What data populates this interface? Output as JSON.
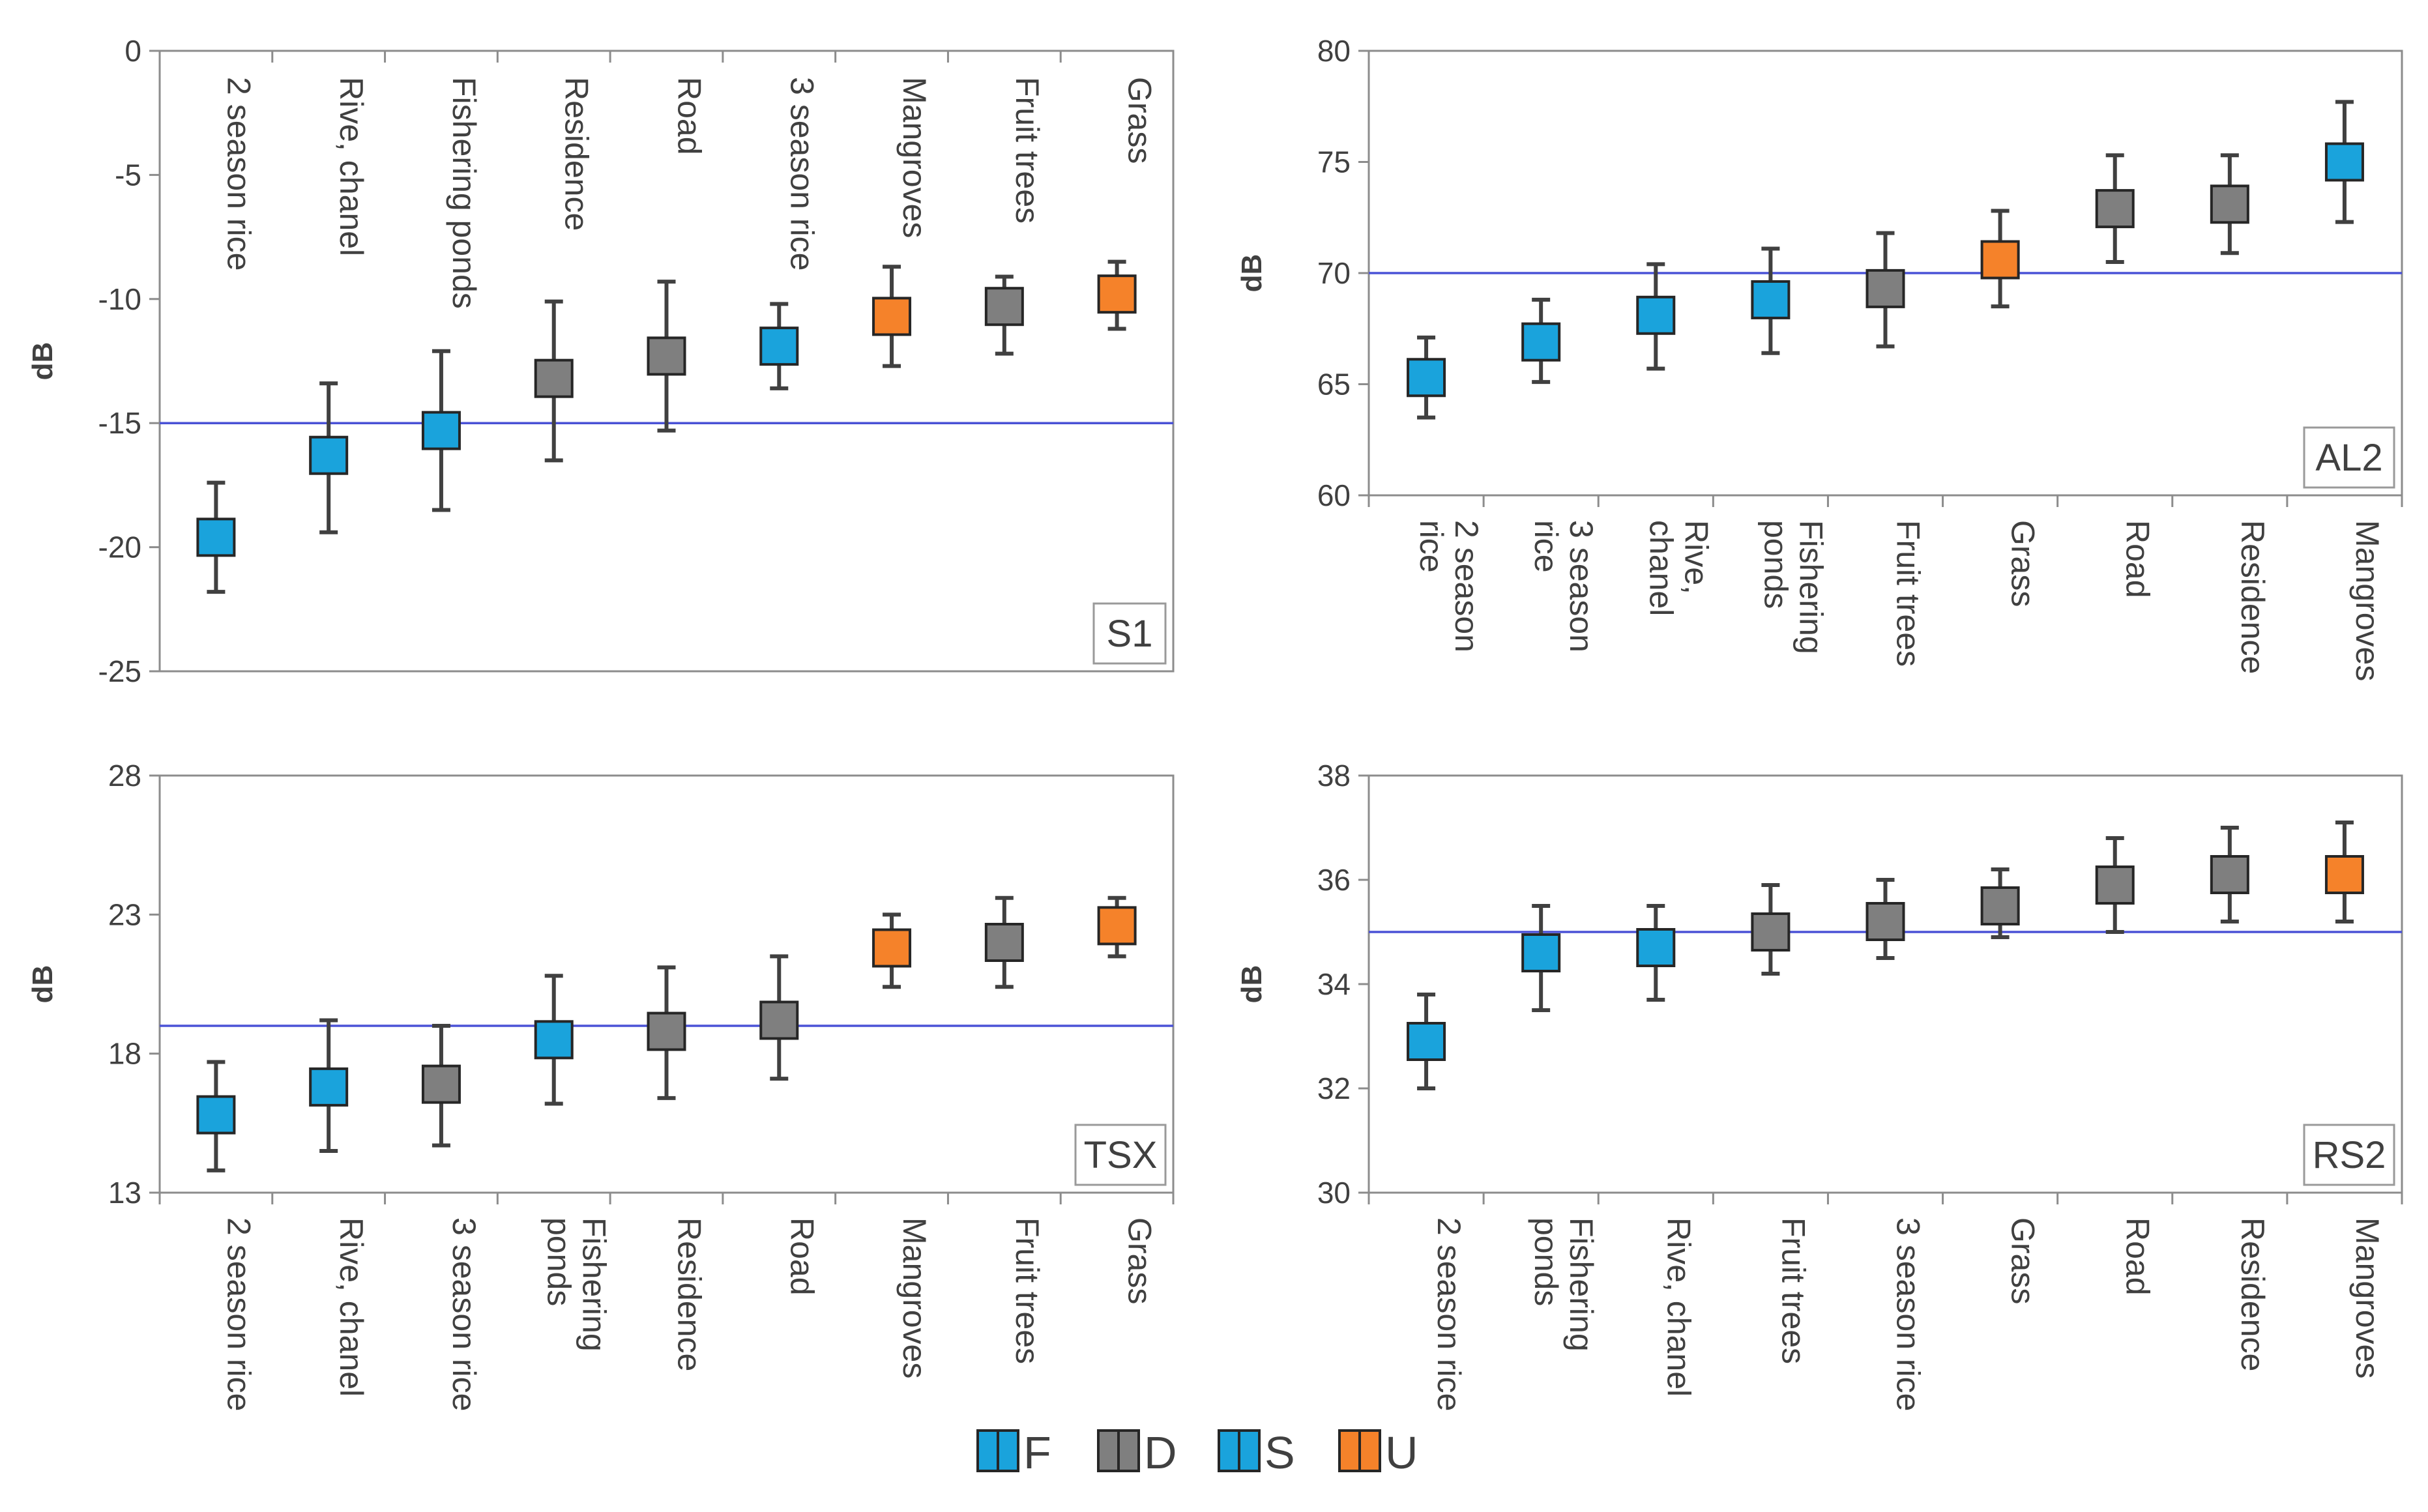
{
  "legend": {
    "items": [
      {
        "label": "F",
        "fill": "#1aa3dc"
      },
      {
        "label": "D",
        "fill": "#7f7f7f"
      },
      {
        "label": "S",
        "fill": "#1aa3dc"
      },
      {
        "label": "U",
        "fill": "#f5822a"
      }
    ]
  },
  "colors": {
    "F": "#1aa3dc",
    "D": "#7f7f7f",
    "S": "#1aa3dc",
    "U": "#f5822a",
    "ref_line": "#4a52d6",
    "axis": "#8c8c8c"
  },
  "chart_data": [
    {
      "id": "s1",
      "type": "scatter",
      "title": "S1",
      "ylabel": "dB",
      "ylim": [
        -25,
        0
      ],
      "yticks": [
        0,
        -5,
        -10,
        -15,
        -20,
        -25
      ],
      "ref_line": -15,
      "category_labels_position": "inside-top",
      "categories": [
        {
          "label": "2 season rice",
          "mean": -19.6,
          "low": -21.8,
          "high": -17.4,
          "class": "S"
        },
        {
          "label": "Rive, chanel",
          "mean": -16.3,
          "low": -19.4,
          "high": -13.4,
          "class": "F"
        },
        {
          "label": "Fishering ponds",
          "mean": -15.3,
          "low": -18.5,
          "high": -12.1,
          "class": "F"
        },
        {
          "label": "Residence",
          "mean": -13.2,
          "low": -16.5,
          "high": -10.1,
          "class": "D"
        },
        {
          "label": "Road",
          "mean": -12.3,
          "low": -15.3,
          "high": -9.3,
          "class": "D"
        },
        {
          "label": "3 season rice",
          "mean": -11.9,
          "low": -13.6,
          "high": -10.2,
          "class": "S"
        },
        {
          "label": "Mangroves",
          "mean": -10.7,
          "low": -12.7,
          "high": -8.7,
          "class": "U"
        },
        {
          "label": "Fruit trees",
          "mean": -10.3,
          "low": -12.2,
          "high": -9.1,
          "class": "D"
        },
        {
          "label": "Grass",
          "mean": -9.8,
          "low": -11.2,
          "high": -8.5,
          "class": "U"
        }
      ]
    },
    {
      "id": "al2",
      "type": "scatter",
      "title": "AL2",
      "ylabel": "dB",
      "ylim": [
        60,
        80
      ],
      "yticks": [
        80,
        75,
        70,
        65,
        60
      ],
      "ref_line": 70,
      "category_labels_position": "below",
      "categories": [
        {
          "label": "2 season rice",
          "lines": [
            "2 season",
            "rice"
          ],
          "mean": 65.3,
          "low": 63.5,
          "high": 67.1,
          "class": "S"
        },
        {
          "label": "3 season rice",
          "lines": [
            "3 season",
            "rice"
          ],
          "mean": 66.9,
          "low": 65.1,
          "high": 68.8,
          "class": "S"
        },
        {
          "label": "Rive, chanel",
          "lines": [
            "Rive,",
            "chanel"
          ],
          "mean": 68.1,
          "low": 65.7,
          "high": 70.4,
          "class": "F"
        },
        {
          "label": "Fishering ponds",
          "lines": [
            "Fishering",
            "ponds"
          ],
          "mean": 68.8,
          "low": 66.4,
          "high": 71.1,
          "class": "F"
        },
        {
          "label": "Fruit trees",
          "lines": [
            "Fruit trees"
          ],
          "mean": 69.3,
          "low": 66.7,
          "high": 71.8,
          "class": "D"
        },
        {
          "label": "Grass",
          "lines": [
            "Grass"
          ],
          "mean": 70.6,
          "low": 68.5,
          "high": 72.8,
          "class": "U"
        },
        {
          "label": "Road",
          "lines": [
            "Road"
          ],
          "mean": 72.9,
          "low": 70.5,
          "high": 75.3,
          "class": "D"
        },
        {
          "label": "Residence",
          "lines": [
            "Residence"
          ],
          "mean": 73.1,
          "low": 70.9,
          "high": 75.3,
          "class": "D"
        },
        {
          "label": "Mangroves",
          "lines": [
            "Mangroves"
          ],
          "mean": 75.0,
          "low": 72.3,
          "high": 77.7,
          "class": "F"
        }
      ]
    },
    {
      "id": "tsx",
      "type": "scatter",
      "title": "TSX",
      "ylabel": "dB",
      "ylim": [
        13,
        28
      ],
      "yticks": [
        28,
        23,
        18,
        13
      ],
      "ref_line": 19,
      "category_labels_position": "below",
      "categories": [
        {
          "label": "2 season rice",
          "lines": [
            "2 season rice"
          ],
          "mean": 15.8,
          "low": 13.8,
          "high": 17.7,
          "class": "S"
        },
        {
          "label": "Rive, chanel",
          "lines": [
            "Rive, chanel"
          ],
          "mean": 16.8,
          "low": 14.5,
          "high": 19.2,
          "class": "F"
        },
        {
          "label": "3 season rice",
          "lines": [
            "3 season rice"
          ],
          "mean": 16.9,
          "low": 14.7,
          "high": 19.0,
          "class": "D"
        },
        {
          "label": "Fishering ponds",
          "lines": [
            "Fishering",
            "ponds"
          ],
          "mean": 18.5,
          "low": 16.2,
          "high": 20.8,
          "class": "F"
        },
        {
          "label": "Residence",
          "lines": [
            "Residence"
          ],
          "mean": 18.8,
          "low": 16.4,
          "high": 21.1,
          "class": "D"
        },
        {
          "label": "Road",
          "lines": [
            "Road"
          ],
          "mean": 19.2,
          "low": 17.1,
          "high": 21.5,
          "class": "D"
        },
        {
          "label": "Mangroves",
          "lines": [
            "Mangroves"
          ],
          "mean": 21.8,
          "low": 20.4,
          "high": 23.0,
          "class": "U"
        },
        {
          "label": "Fruit trees",
          "lines": [
            "Fruit trees"
          ],
          "mean": 22.0,
          "low": 20.4,
          "high": 23.6,
          "class": "D"
        },
        {
          "label": "Grass",
          "lines": [
            "Grass"
          ],
          "mean": 22.6,
          "low": 21.5,
          "high": 23.6,
          "class": "U"
        }
      ]
    },
    {
      "id": "rs2",
      "type": "scatter",
      "title": "RS2",
      "ylabel": "dB",
      "ylim": [
        30,
        38
      ],
      "yticks": [
        38,
        36,
        34,
        32,
        30
      ],
      "ref_line": 35.0,
      "category_labels_position": "below",
      "categories": [
        {
          "label": "2 season rice",
          "lines": [
            "2 season rice"
          ],
          "mean": 32.9,
          "low": 32.0,
          "high": 33.8,
          "class": "S"
        },
        {
          "label": "Fishering ponds",
          "lines": [
            "Fishering",
            "ponds"
          ],
          "mean": 34.6,
          "low": 33.5,
          "high": 35.5,
          "class": "F"
        },
        {
          "label": "Rive, chanel",
          "lines": [
            "Rive, chanel"
          ],
          "mean": 34.7,
          "low": 33.7,
          "high": 35.5,
          "class": "F"
        },
        {
          "label": "Fruit trees",
          "lines": [
            "Fruit trees"
          ],
          "mean": 35.0,
          "low": 34.2,
          "high": 35.9,
          "class": "D"
        },
        {
          "label": "3 season rice",
          "lines": [
            "3 season rice"
          ],
          "mean": 35.2,
          "low": 34.5,
          "high": 36.0,
          "class": "D"
        },
        {
          "label": "Grass",
          "lines": [
            "Grass"
          ],
          "mean": 35.5,
          "low": 34.9,
          "high": 36.2,
          "class": "D"
        },
        {
          "label": "Road",
          "lines": [
            "Road"
          ],
          "mean": 35.9,
          "low": 35.0,
          "high": 36.8,
          "class": "D"
        },
        {
          "label": "Residence",
          "lines": [
            "Residence"
          ],
          "mean": 36.1,
          "low": 35.2,
          "high": 37.0,
          "class": "D"
        },
        {
          "label": "Mangroves",
          "lines": [
            "Mangroves"
          ],
          "mean": 36.1,
          "low": 35.2,
          "high": 37.1,
          "class": "U"
        }
      ]
    }
  ]
}
